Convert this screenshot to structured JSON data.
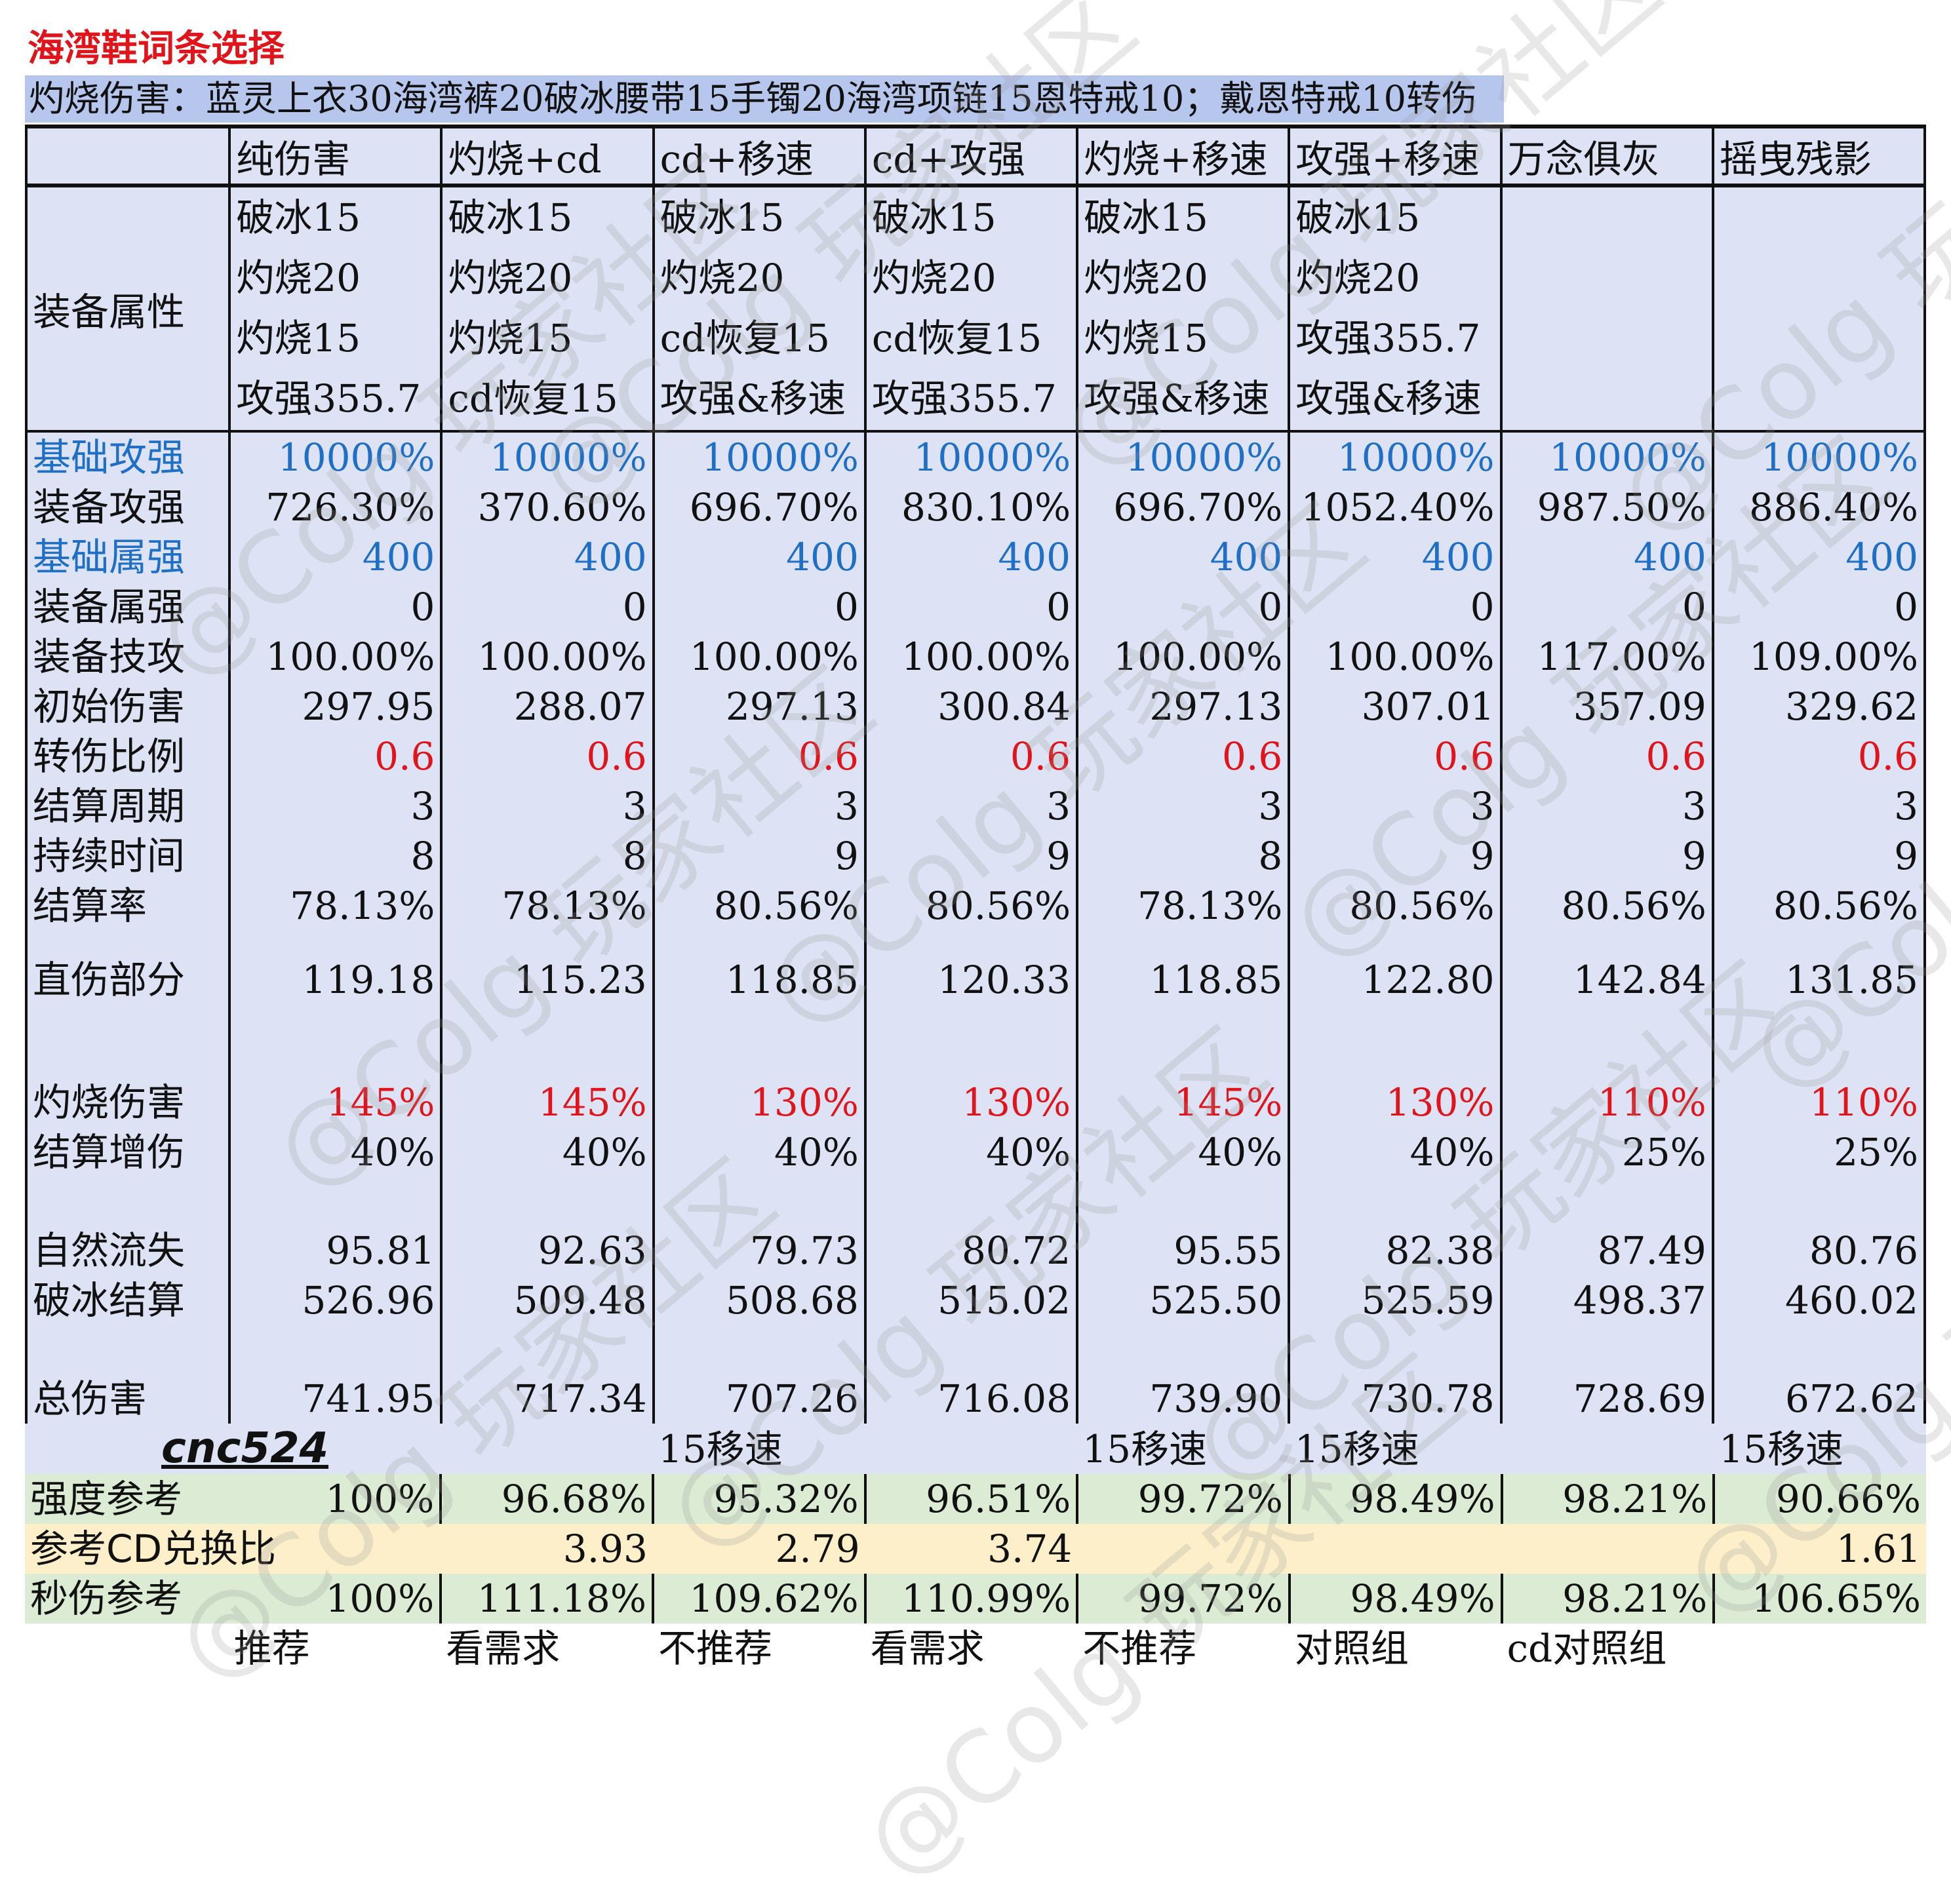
{
  "title": "海湾鞋词条选择",
  "subtitle": "灼烧伤害：蓝灵上衣30海湾裤20破冰腰带15手镯20海湾项链15恩特戒10；戴恩特戒10转伤",
  "headers": [
    "",
    "纯伤害",
    "灼烧+cd",
    "cd+移速",
    "cd+攻强",
    "灼烧+移速",
    "攻强+移速",
    "万念俱灰",
    "摇曳残影"
  ],
  "equip_label": "装备属性",
  "equip": [
    [
      "破冰15",
      "灼烧20",
      "灼烧15",
      "攻强355.7"
    ],
    [
      "破冰15",
      "灼烧20",
      "灼烧15",
      "cd恢复15"
    ],
    [
      "破冰15",
      "灼烧20",
      "cd恢复15",
      "攻强&移速"
    ],
    [
      "破冰15",
      "灼烧20",
      "cd恢复15",
      "攻强355.7"
    ],
    [
      "破冰15",
      "灼烧20",
      "灼烧15",
      "攻强&移速"
    ],
    [
      "破冰15",
      "灼烧20",
      "攻强355.7",
      "攻强&移速"
    ],
    [
      "",
      "",
      "",
      ""
    ],
    [
      "",
      "",
      "",
      ""
    ]
  ],
  "rows": [
    {
      "label": "基础攻强",
      "values": [
        "10000%",
        "10000%",
        "10000%",
        "10000%",
        "10000%",
        "10000%",
        "10000%",
        "10000%"
      ]
    },
    {
      "label": "装备攻强",
      "values": [
        "726.30%",
        "370.60%",
        "696.70%",
        "830.10%",
        "696.70%",
        "1052.40%",
        "987.50%",
        "886.40%"
      ]
    },
    {
      "label": "基础属强",
      "values": [
        "400",
        "400",
        "400",
        "400",
        "400",
        "400",
        "400",
        "400"
      ]
    },
    {
      "label": "装备属强",
      "values": [
        "0",
        "0",
        "0",
        "0",
        "0",
        "0",
        "0",
        "0"
      ]
    },
    {
      "label": "装备技攻",
      "values": [
        "100.00%",
        "100.00%",
        "100.00%",
        "100.00%",
        "100.00%",
        "100.00%",
        "117.00%",
        "109.00%"
      ]
    },
    {
      "label": "初始伤害",
      "values": [
        "297.95",
        "288.07",
        "297.13",
        "300.84",
        "297.13",
        "307.01",
        "357.09",
        "329.62"
      ]
    },
    {
      "label": "转伤比例",
      "values": [
        "0.6",
        "0.6",
        "0.6",
        "0.6",
        "0.6",
        "0.6",
        "0.6",
        "0.6"
      ]
    },
    {
      "label": "结算周期",
      "values": [
        "3",
        "3",
        "3",
        "3",
        "3",
        "3",
        "3",
        "3"
      ]
    },
    {
      "label": "持续时间",
      "values": [
        "8",
        "8",
        "9",
        "9",
        "8",
        "9",
        "9",
        "9"
      ]
    },
    {
      "label": "结算率",
      "values": [
        "78.13%",
        "78.13%",
        "80.56%",
        "80.56%",
        "78.13%",
        "80.56%",
        "80.56%",
        "80.56%"
      ]
    },
    {
      "label": "直伤部分",
      "values": [
        "119.18",
        "115.23",
        "118.85",
        "120.33",
        "118.85",
        "122.80",
        "142.84",
        "131.85"
      ]
    },
    {
      "label": "灼烧伤害",
      "values": [
        "145%",
        "145%",
        "130%",
        "130%",
        "145%",
        "130%",
        "110%",
        "110%"
      ]
    },
    {
      "label": "结算增伤",
      "values": [
        "40%",
        "40%",
        "40%",
        "40%",
        "40%",
        "40%",
        "25%",
        "25%"
      ]
    },
    {
      "label": "自然流失",
      "values": [
        "95.81",
        "92.63",
        "79.73",
        "80.72",
        "95.55",
        "82.38",
        "87.49",
        "80.76"
      ]
    },
    {
      "label": "破冰结算",
      "values": [
        "526.96",
        "509.48",
        "508.68",
        "515.02",
        "525.50",
        "525.59",
        "498.37",
        "460.02"
      ]
    },
    {
      "label": "总伤害",
      "values": [
        "741.95",
        "717.34",
        "707.26",
        "716.08",
        "739.90",
        "730.78",
        "728.69",
        "672.62"
      ]
    }
  ],
  "note_row": {
    "author": "cnc524",
    "values": [
      "",
      "",
      "15移速",
      "",
      "15移速",
      "15移速",
      "",
      "15移速"
    ]
  },
  "strength": {
    "label": "强度参考",
    "values": [
      "100%",
      "96.68%",
      "95.32%",
      "96.51%",
      "99.72%",
      "98.49%",
      "98.21%",
      "90.66%"
    ]
  },
  "cd_ratio": {
    "label": "参考CD兑换比",
    "values": [
      "",
      "3.93",
      "2.79",
      "3.74",
      "",
      "",
      "",
      "1.61"
    ]
  },
  "dps": {
    "label": "秒伤参考",
    "values": [
      "100%",
      "111.18%",
      "109.62%",
      "110.99%",
      "99.72%",
      "98.49%",
      "98.21%",
      "106.65%"
    ]
  },
  "verdicts": [
    "",
    "推荐",
    "看需求",
    "不推荐",
    "看需求",
    "不推荐",
    "对照组",
    "cd对照组"
  ],
  "watermark": "@Colg 玩家社区"
}
